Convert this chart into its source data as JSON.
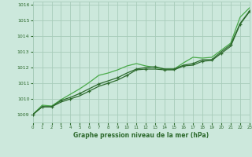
{
  "title": "Graphe pression niveau de la mer (hPa)",
  "background_color": "#cce8dc",
  "grid_color": "#a8ccba",
  "line_color_dark": "#2d6a2d",
  "line_color_light": "#4aaa4a",
  "xlim": [
    0,
    23
  ],
  "ylim": [
    1008.5,
    1016.2
  ],
  "xticks": [
    0,
    1,
    2,
    3,
    4,
    5,
    6,
    7,
    8,
    9,
    10,
    11,
    12,
    13,
    14,
    15,
    16,
    17,
    18,
    19,
    20,
    21,
    22,
    23
  ],
  "yticks": [
    1009,
    1010,
    1011,
    1012,
    1013,
    1014,
    1015,
    1016
  ],
  "series_dark1": [
    1009.0,
    1009.5,
    1009.5,
    1009.8,
    1010.0,
    1010.2,
    1010.5,
    1010.8,
    1011.0,
    1011.2,
    1011.5,
    1011.85,
    1011.9,
    1011.9,
    1011.85,
    1011.85,
    1012.1,
    1012.15,
    1012.4,
    1012.45,
    1012.9,
    1013.35,
    1014.75,
    1015.55
  ],
  "series_dark2": [
    1009.0,
    1009.5,
    1009.5,
    1009.9,
    1010.1,
    1010.35,
    1010.65,
    1010.95,
    1011.15,
    1011.35,
    1011.65,
    1011.9,
    1012.0,
    1012.05,
    1011.9,
    1011.9,
    1012.15,
    1012.25,
    1012.5,
    1012.5,
    1013.0,
    1013.45,
    1014.8,
    1015.6
  ],
  "series_light": [
    1009.0,
    1009.6,
    1009.55,
    1009.95,
    1010.3,
    1010.65,
    1011.05,
    1011.5,
    1011.65,
    1011.85,
    1012.1,
    1012.25,
    1012.1,
    1012.0,
    1011.9,
    1011.9,
    1012.3,
    1012.65,
    1012.6,
    1012.65,
    1013.1,
    1013.55,
    1015.2,
    1015.8
  ],
  "markers_dark1": [
    0,
    2,
    4,
    6,
    8,
    10,
    12,
    14,
    16,
    18,
    20,
    22
  ],
  "markers_dark2": [
    1,
    3,
    5,
    7,
    9,
    11,
    13,
    15,
    17,
    19,
    21,
    23
  ]
}
